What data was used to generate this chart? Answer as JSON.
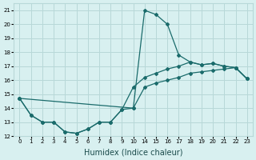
{
  "xlabel": "Humidex (Indice chaleur)",
  "ylabel": "",
  "bg_color": "#d8f0f0",
  "grid_color": "#b8d8d8",
  "line_color": "#1a6b6b",
  "xtick_positions": [
    0,
    1,
    2,
    3,
    4,
    5,
    6,
    7,
    8,
    9,
    10,
    11,
    12,
    13,
    14,
    15,
    16,
    17,
    18,
    19,
    20
  ],
  "xtick_labels": [
    "0",
    "1",
    "2",
    "3",
    "4",
    "5",
    "6",
    "7",
    "8",
    "9",
    "10",
    "14",
    "15",
    "16",
    "17",
    "18",
    "19",
    "20",
    "21",
    "22",
    "23"
  ],
  "yticks": [
    12,
    13,
    14,
    15,
    16,
    17,
    18,
    19,
    20,
    21
  ],
  "xlim": [
    -0.5,
    20.5
  ],
  "ylim": [
    12,
    21.5
  ],
  "line1_x": [
    0,
    1,
    2,
    3,
    4,
    5,
    6,
    7,
    8,
    9,
    10,
    11,
    12,
    13,
    14,
    15,
    16,
    17,
    18,
    19,
    20
  ],
  "line1_y": [
    14.7,
    13.5,
    13.0,
    13.0,
    12.3,
    12.2,
    12.5,
    13.0,
    13.0,
    13.9,
    14.0,
    21.0,
    20.7,
    20.0,
    17.8,
    17.3,
    17.1,
    17.2,
    17.0,
    16.9,
    16.1
  ],
  "line2_x": [
    0,
    1,
    2,
    3,
    4,
    5,
    6,
    7,
    8,
    9,
    10,
    11,
    12,
    13,
    14,
    15,
    16,
    17,
    18,
    19,
    20
  ],
  "line2_y": [
    14.7,
    13.5,
    13.0,
    13.0,
    12.3,
    12.2,
    12.5,
    13.0,
    13.0,
    13.9,
    15.5,
    16.2,
    16.5,
    16.8,
    17.0,
    17.3,
    17.1,
    17.2,
    17.0,
    16.9,
    16.1
  ],
  "line3_x": [
    0,
    10,
    11,
    12,
    13,
    14,
    15,
    16,
    17,
    18,
    19,
    20
  ],
  "line3_y": [
    14.7,
    14.0,
    15.5,
    15.8,
    16.0,
    16.2,
    16.5,
    16.6,
    16.7,
    16.8,
    16.9,
    16.1
  ]
}
